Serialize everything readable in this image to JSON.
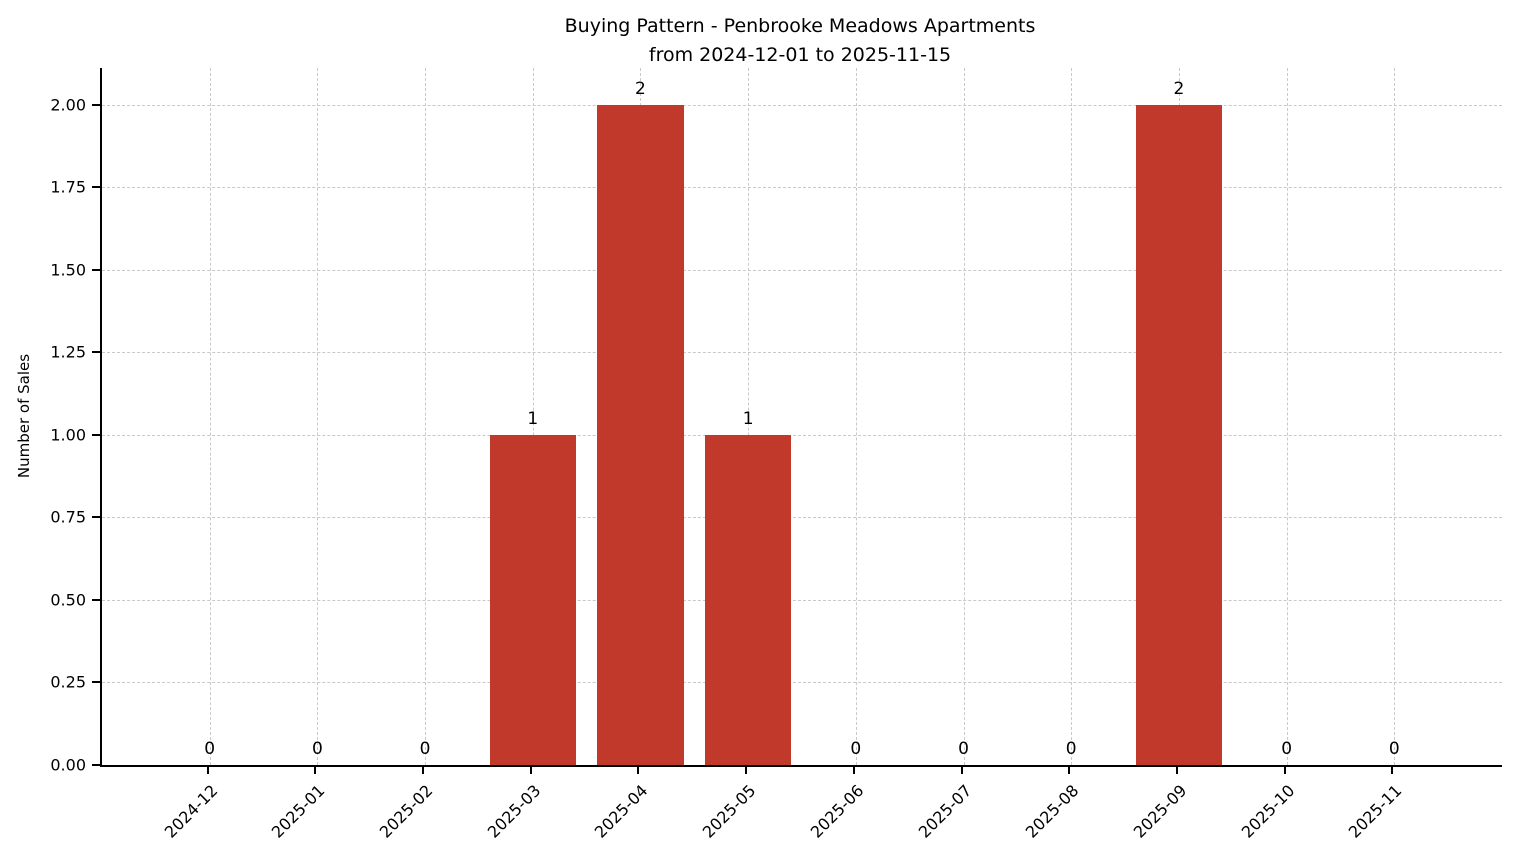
{
  "chart_data": {
    "type": "bar",
    "title": "Buying Pattern - Penbrooke Meadows Apartments from 2024-12-01 to 2025-11-15",
    "title_lines": [
      "Buying Pattern - Penbrooke Meadows Apartments",
      "from 2024-12-01 to 2025-11-15"
    ],
    "xlabel": "",
    "ylabel": "Number of Sales",
    "categories": [
      "2024-12",
      "2025-01",
      "2025-02",
      "2025-03",
      "2025-04",
      "2025-05",
      "2025-06",
      "2025-07",
      "2025-08",
      "2025-09",
      "2025-10",
      "2025-11"
    ],
    "values": [
      0,
      0,
      0,
      1,
      2,
      1,
      0,
      0,
      0,
      2,
      0,
      0
    ],
    "bar_labels": [
      "0",
      "0",
      "0",
      "1",
      "2",
      "1",
      "0",
      "0",
      "0",
      "2",
      "0",
      "0"
    ],
    "yticks": [
      0.0,
      0.25,
      0.5,
      0.75,
      1.0,
      1.25,
      1.5,
      1.75,
      2.0
    ],
    "ylim": [
      0,
      2.112
    ],
    "bar_color": "#c0392b",
    "grid": true,
    "grid_style": "dashed",
    "legend": "none",
    "x_tick_rotation": 45
  }
}
